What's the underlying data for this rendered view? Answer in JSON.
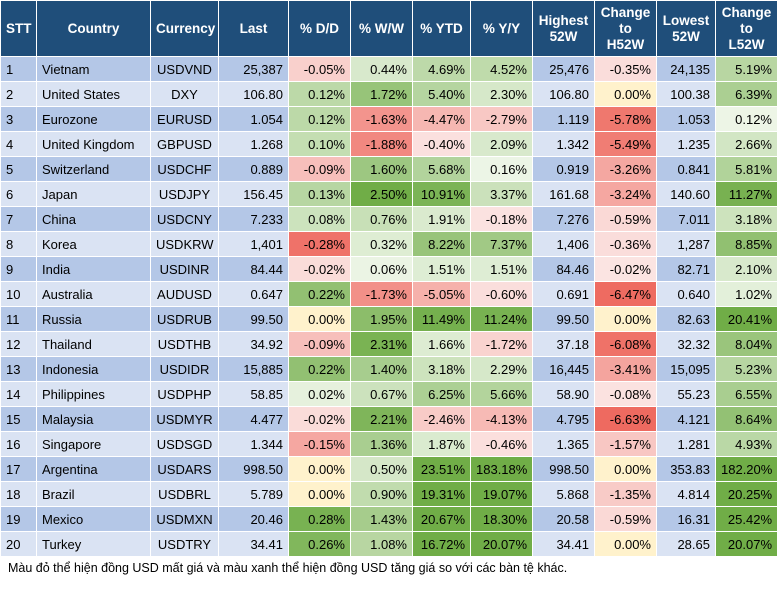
{
  "headers": [
    "STT",
    "Country",
    "Currency",
    "Last",
    "% D/D",
    "% W/W",
    "% YTD",
    "% Y/Y",
    "Highest 52W",
    "Change to H52W",
    "Lowest 52W",
    "Change to L52W"
  ],
  "colors": {
    "header_bg": "#1f4e7a",
    "row_blue_dark": "#b4c7e7",
    "row_blue_light": "#dae3f3",
    "neutral_yellow": "#fff2cc",
    "red_scale": [
      "#ffffff",
      "#f9dedb",
      "#f8c6c1",
      "#f4a7a0",
      "#f07d74"
    ],
    "green_scale": [
      "#ffffff",
      "#e3efd9",
      "#c6e0b4",
      "#a9d08e",
      "#70ad47"
    ]
  },
  "rows": [
    {
      "stt": "1",
      "country": "Vietnam",
      "currency": "USDVND",
      "last": "25,387",
      "dd": "-0.05%",
      "ww": "0.44%",
      "ytd": "4.69%",
      "yy": "4.52%",
      "h52": "25,476",
      "ch52": "-0.35%",
      "l52": "24,135",
      "cl52": "5.19%"
    },
    {
      "stt": "2",
      "country": "United States",
      "currency": "DXY",
      "last": "106.80",
      "dd": "0.12%",
      "ww": "1.72%",
      "ytd": "5.40%",
      "yy": "2.30%",
      "h52": "106.80",
      "ch52": "0.00%",
      "l52": "100.38",
      "cl52": "6.39%"
    },
    {
      "stt": "3",
      "country": "Eurozone",
      "currency": "EURUSD",
      "last": "1.054",
      "dd": "0.12%",
      "ww": "-1.63%",
      "ytd": "-4.47%",
      "yy": "-2.79%",
      "h52": "1.119",
      "ch52": "-5.78%",
      "l52": "1.053",
      "cl52": "0.12%"
    },
    {
      "stt": "4",
      "country": "United Kingdom",
      "currency": "GBPUSD",
      "last": "1.268",
      "dd": "0.10%",
      "ww": "-1.88%",
      "ytd": "-0.40%",
      "yy": "2.09%",
      "h52": "1.342",
      "ch52": "-5.49%",
      "l52": "1.235",
      "cl52": "2.66%"
    },
    {
      "stt": "5",
      "country": "Switzerland",
      "currency": "USDCHF",
      "last": "0.889",
      "dd": "-0.09%",
      "ww": "1.60%",
      "ytd": "5.68%",
      "yy": "0.16%",
      "h52": "0.919",
      "ch52": "-3.26%",
      "l52": "0.841",
      "cl52": "5.81%"
    },
    {
      "stt": "6",
      "country": "Japan",
      "currency": "USDJPY",
      "last": "156.45",
      "dd": "0.13%",
      "ww": "2.50%",
      "ytd": "10.91%",
      "yy": "3.37%",
      "h52": "161.68",
      "ch52": "-3.24%",
      "l52": "140.60",
      "cl52": "11.27%"
    },
    {
      "stt": "7",
      "country": "China",
      "currency": "USDCNY",
      "last": "7.233",
      "dd": "0.08%",
      "ww": "0.76%",
      "ytd": "1.91%",
      "yy": "-0.18%",
      "h52": "7.276",
      "ch52": "-0.59%",
      "l52": "7.011",
      "cl52": "3.18%"
    },
    {
      "stt": "8",
      "country": "Korea",
      "currency": "USDKRW",
      "last": "1,401",
      "dd": "-0.28%",
      "ww": "0.32%",
      "ytd": "8.22%",
      "yy": "7.37%",
      "h52": "1,406",
      "ch52": "-0.36%",
      "l52": "1,287",
      "cl52": "8.85%"
    },
    {
      "stt": "9",
      "country": "India",
      "currency": "USDINR",
      "last": "84.44",
      "dd": "-0.02%",
      "ww": "0.06%",
      "ytd": "1.51%",
      "yy": "1.51%",
      "h52": "84.46",
      "ch52": "-0.02%",
      "l52": "82.71",
      "cl52": "2.10%"
    },
    {
      "stt": "10",
      "country": "Australia",
      "currency": "AUDUSD",
      "last": "0.647",
      "dd": "0.22%",
      "ww": "-1.73%",
      "ytd": "-5.05%",
      "yy": "-0.60%",
      "h52": "0.691",
      "ch52": "-6.47%",
      "l52": "0.640",
      "cl52": "1.02%"
    },
    {
      "stt": "11",
      "country": "Russia",
      "currency": "USDRUB",
      "last": "99.50",
      "dd": "0.00%",
      "ww": "1.95%",
      "ytd": "11.49%",
      "yy": "11.24%",
      "h52": "99.50",
      "ch52": "0.00%",
      "l52": "82.63",
      "cl52": "20.41%"
    },
    {
      "stt": "12",
      "country": "Thailand",
      "currency": "USDTHB",
      "last": "34.92",
      "dd": "-0.09%",
      "ww": "2.31%",
      "ytd": "1.66%",
      "yy": "-1.72%",
      "h52": "37.18",
      "ch52": "-6.08%",
      "l52": "32.32",
      "cl52": "8.04%"
    },
    {
      "stt": "13",
      "country": "Indonesia",
      "currency": "USDIDR",
      "last": "15,885",
      "dd": "0.22%",
      "ww": "1.40%",
      "ytd": "3.18%",
      "yy": "2.29%",
      "h52": "16,445",
      "ch52": "-3.41%",
      "l52": "15,095",
      "cl52": "5.23%"
    },
    {
      "stt": "14",
      "country": "Philippines",
      "currency": "USDPHP",
      "last": "58.85",
      "dd": "0.02%",
      "ww": "0.67%",
      "ytd": "6.25%",
      "yy": "5.66%",
      "h52": "58.90",
      "ch52": "-0.08%",
      "l52": "55.23",
      "cl52": "6.55%"
    },
    {
      "stt": "15",
      "country": "Malaysia",
      "currency": "USDMYR",
      "last": "4.477",
      "dd": "-0.02%",
      "ww": "2.21%",
      "ytd": "-2.46%",
      "yy": "-4.13%",
      "h52": "4.795",
      "ch52": "-6.63%",
      "l52": "4.121",
      "cl52": "8.64%"
    },
    {
      "stt": "16",
      "country": "Singapore",
      "currency": "USDSGD",
      "last": "1.344",
      "dd": "-0.15%",
      "ww": "1.36%",
      "ytd": "1.87%",
      "yy": "-0.46%",
      "h52": "1.365",
      "ch52": "-1.57%",
      "l52": "1.281",
      "cl52": "4.93%"
    },
    {
      "stt": "17",
      "country": "Argentina",
      "currency": "USDARS",
      "last": "998.50",
      "dd": "0.00%",
      "ww": "0.50%",
      "ytd": "23.51%",
      "yy": "183.18%",
      "h52": "998.50",
      "ch52": "0.00%",
      "l52": "353.83",
      "cl52": "182.20%"
    },
    {
      "stt": "18",
      "country": "Brazil",
      "currency": "USDBRL",
      "last": "5.789",
      "dd": "0.00%",
      "ww": "0.90%",
      "ytd": "19.31%",
      "yy": "19.07%",
      "h52": "5.868",
      "ch52": "-1.35%",
      "l52": "4.814",
      "cl52": "20.25%"
    },
    {
      "stt": "19",
      "country": "Mexico",
      "currency": "USDMXN",
      "last": "20.46",
      "dd": "0.28%",
      "ww": "1.43%",
      "ytd": "20.67%",
      "yy": "18.30%",
      "h52": "20.58",
      "ch52": "-0.59%",
      "l52": "16.31",
      "cl52": "25.42%"
    },
    {
      "stt": "20",
      "country": "Turkey",
      "currency": "USDTRY",
      "last": "34.41",
      "dd": "0.26%",
      "ww": "1.08%",
      "ytd": "16.72%",
      "yy": "20.07%",
      "h52": "34.41",
      "ch52": "0.00%",
      "l52": "28.65",
      "cl52": "20.07%"
    }
  ],
  "footnote": "Màu đỏ thể hiện đồng USD mất giá và màu xanh thể hiện đồng USD tăng giá so với các bàn tệ khác."
}
